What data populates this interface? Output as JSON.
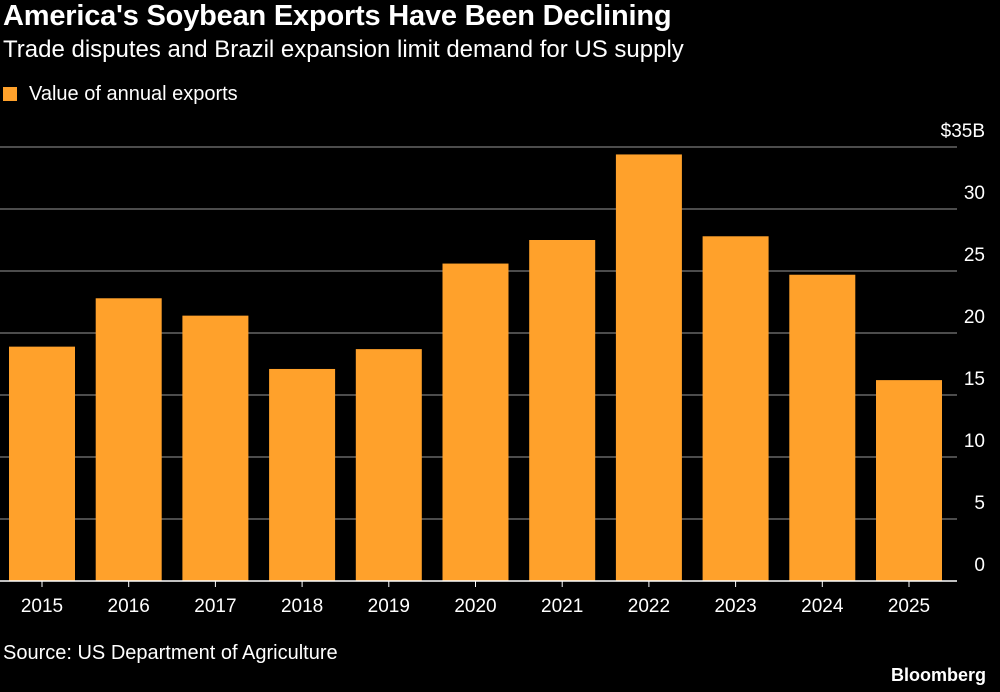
{
  "header": {
    "title": "America's Soybean Exports Have Been Declining",
    "subtitle": "Trade disputes and Brazil expansion limit demand for US supply"
  },
  "legend": {
    "label": "Value of annual exports"
  },
  "footer": {
    "source": "Source: US Department of Agriculture",
    "brand": "Bloomberg"
  },
  "colors": {
    "background": "#000000",
    "bar": "#FFA12B",
    "gridline": "#666666",
    "baseline": "#FFFFFF",
    "text": "#FFFFFF"
  },
  "chart_data": {
    "type": "bar",
    "categories": [
      "2015",
      "2016",
      "2017",
      "2018",
      "2019",
      "2020",
      "2021",
      "2022",
      "2023",
      "2024",
      "2025"
    ],
    "series": [
      {
        "name": "Value of annual exports",
        "values": [
          18.9,
          22.8,
          21.4,
          17.1,
          18.7,
          25.6,
          27.5,
          34.4,
          27.8,
          24.7,
          16.2
        ]
      }
    ],
    "ylim": [
      0,
      35
    ],
    "yticks": [
      0,
      5,
      10,
      15,
      20,
      25,
      30,
      35
    ],
    "ytick_labels": [
      "0",
      "5",
      "10",
      "15",
      "20",
      "25",
      "30",
      "$35B"
    ],
    "y_axis_position": "right",
    "grid": true,
    "legend_position": "top-left",
    "title": "America's Soybean Exports Have Been Declining",
    "subtitle": "Trade disputes and Brazil expansion limit demand for US supply",
    "xlabel": "",
    "ylabel": ""
  }
}
